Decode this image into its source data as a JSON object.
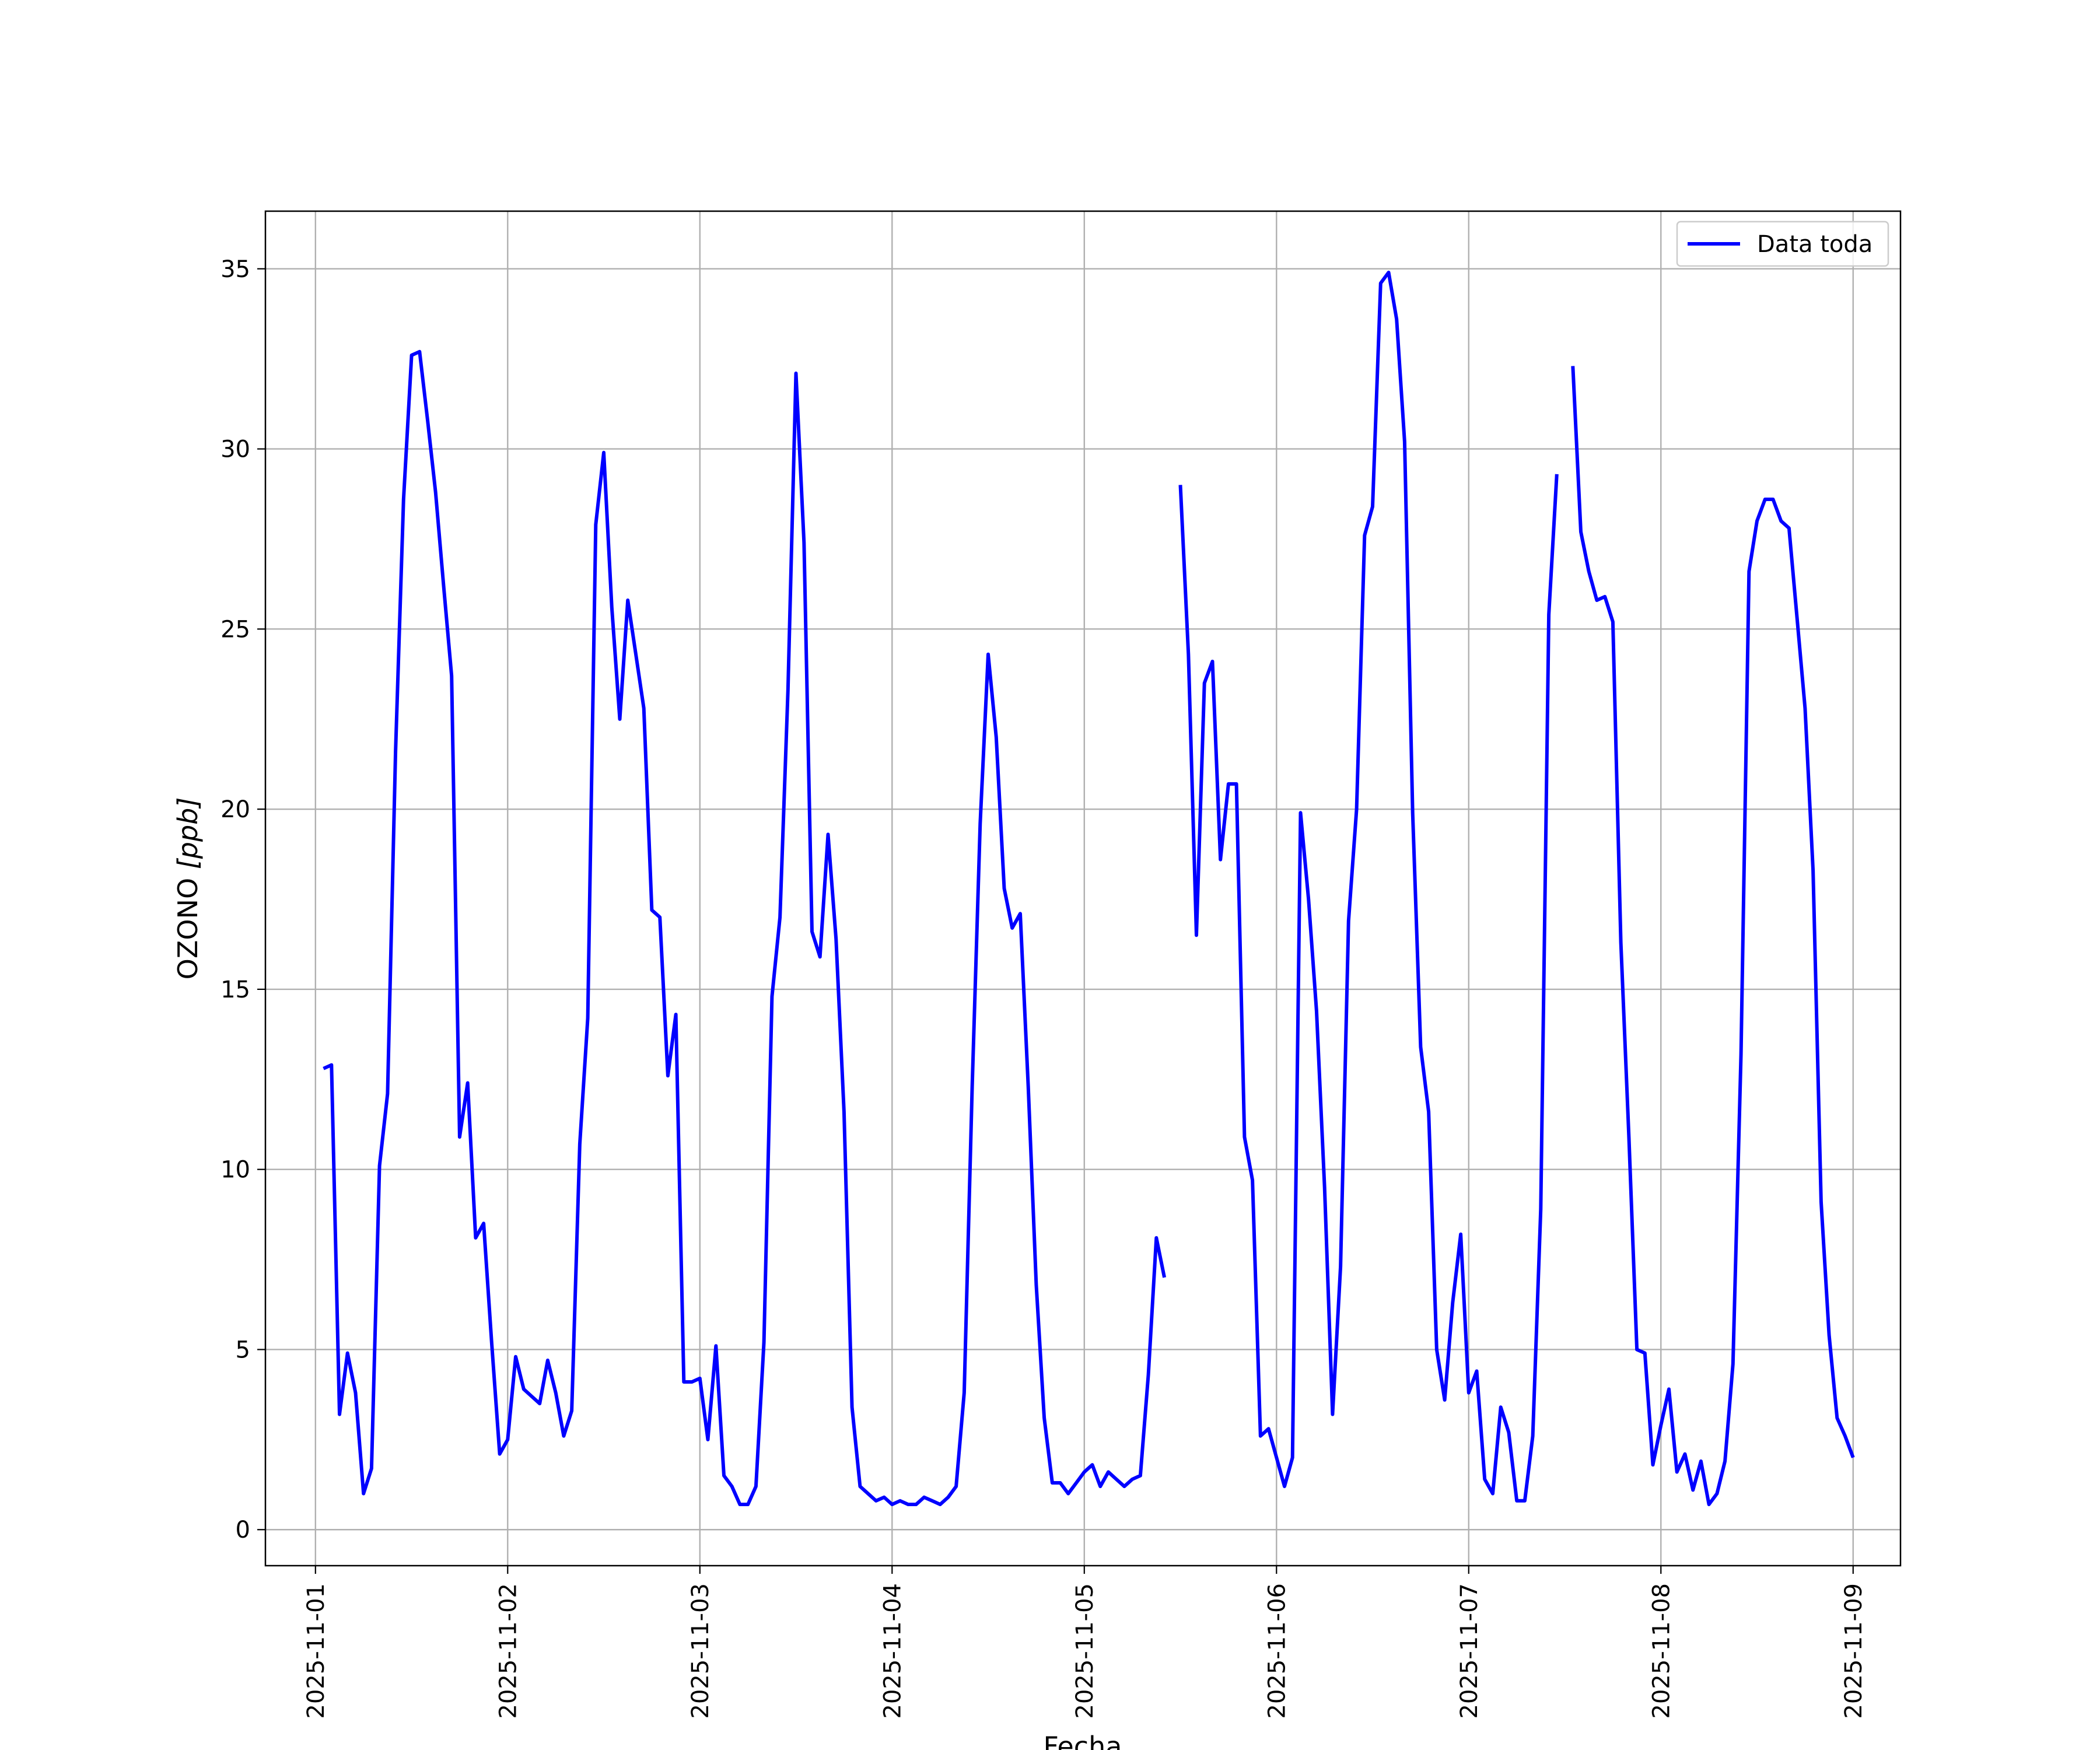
{
  "chart_data": {
    "type": "line",
    "title": "",
    "xlabel": "Fecha",
    "ylabel_text": "OZONO ",
    "ylabel_unit": "[ppb]",
    "x_axis": {
      "type": "date",
      "range": [
        "2025-10-31 17:45",
        "2025-11-09 05:55"
      ],
      "ticks": [
        "2025-11-01",
        "2025-11-02",
        "2025-11-03",
        "2025-11-04",
        "2025-11-05",
        "2025-11-06",
        "2025-11-07",
        "2025-11-08",
        "2025-11-09"
      ]
    },
    "y_axis": {
      "range": [
        -1.0,
        36.6
      ],
      "ticks": [
        0,
        5,
        10,
        15,
        20,
        25,
        30,
        35
      ]
    },
    "grid": true,
    "legend_position": "top-right",
    "series": [
      {
        "name": "Data toda",
        "color": "#0000ff",
        "line_style": "solid",
        "points": [
          [
            "2025-11-01 01:00",
            12.8
          ],
          [
            "2025-11-01 02:00",
            12.9
          ],
          [
            "2025-11-01 03:00",
            3.2
          ],
          [
            "2025-11-01 04:00",
            4.9
          ],
          [
            "2025-11-01 05:00",
            3.8
          ],
          [
            "2025-11-01 06:00",
            1.0
          ],
          [
            "2025-11-01 07:00",
            1.7
          ],
          [
            "2025-11-01 08:00",
            10.1
          ],
          [
            "2025-11-01 09:00",
            12.1
          ],
          [
            "2025-11-01 10:00",
            21.6
          ],
          [
            "2025-11-01 11:00",
            28.6
          ],
          [
            "2025-11-01 12:00",
            32.6
          ],
          [
            "2025-11-01 13:00",
            32.7
          ],
          [
            "2025-11-01 14:00",
            30.8
          ],
          [
            "2025-11-01 15:00",
            28.8
          ],
          [
            "2025-11-01 16:00",
            26.2
          ],
          [
            "2025-11-01 17:00",
            23.7
          ],
          [
            "2025-11-01 18:00",
            10.9
          ],
          [
            "2025-11-01 19:00",
            12.4
          ],
          [
            "2025-11-01 20:00",
            8.1
          ],
          [
            "2025-11-01 21:00",
            8.5
          ],
          [
            "2025-11-01 22:00",
            5.2
          ],
          [
            "2025-11-01 23:00",
            2.1
          ],
          [
            "2025-11-02 00:00",
            2.5
          ],
          [
            "2025-11-02 01:00",
            4.8
          ],
          [
            "2025-11-02 02:00",
            3.9
          ],
          [
            "2025-11-02 03:00",
            3.7
          ],
          [
            "2025-11-02 04:00",
            3.5
          ],
          [
            "2025-11-02 05:00",
            4.7
          ],
          [
            "2025-11-02 06:00",
            3.8
          ],
          [
            "2025-11-02 07:00",
            2.6
          ],
          [
            "2025-11-02 08:00",
            3.3
          ],
          [
            "2025-11-02 09:00",
            10.7
          ],
          [
            "2025-11-02 10:00",
            14.2
          ],
          [
            "2025-11-02 11:00",
            27.9
          ],
          [
            "2025-11-02 12:00",
            29.9
          ],
          [
            "2025-11-02 13:00",
            25.6
          ],
          [
            "2025-11-02 14:00",
            22.5
          ],
          [
            "2025-11-02 15:00",
            25.8
          ],
          [
            "2025-11-02 16:00",
            24.3
          ],
          [
            "2025-11-02 17:00",
            22.8
          ],
          [
            "2025-11-02 18:00",
            17.2
          ],
          [
            "2025-11-02 19:00",
            17.0
          ],
          [
            "2025-11-02 20:00",
            12.6
          ],
          [
            "2025-11-02 21:00",
            14.3
          ],
          [
            "2025-11-02 22:00",
            4.1
          ],
          [
            "2025-11-02 23:00",
            4.1
          ],
          [
            "2025-11-03 00:00",
            4.2
          ],
          [
            "2025-11-03 01:00",
            2.5
          ],
          [
            "2025-11-03 02:00",
            5.1
          ],
          [
            "2025-11-03 03:00",
            1.5
          ],
          [
            "2025-11-03 04:00",
            1.2
          ],
          [
            "2025-11-03 05:00",
            0.7
          ],
          [
            "2025-11-03 06:00",
            0.7
          ],
          [
            "2025-11-03 07:00",
            1.2
          ],
          [
            "2025-11-03 08:00",
            5.2
          ],
          [
            "2025-11-03 09:00",
            14.8
          ],
          [
            "2025-11-03 10:00",
            17.0
          ],
          [
            "2025-11-03 11:00",
            23.3
          ],
          [
            "2025-11-03 12:00",
            32.1
          ],
          [
            "2025-11-03 13:00",
            27.4
          ],
          [
            "2025-11-03 14:00",
            16.6
          ],
          [
            "2025-11-03 15:00",
            15.9
          ],
          [
            "2025-11-03 16:00",
            19.3
          ],
          [
            "2025-11-03 17:00",
            16.4
          ],
          [
            "2025-11-03 18:00",
            11.6
          ],
          [
            "2025-11-03 19:00",
            3.4
          ],
          [
            "2025-11-03 20:00",
            1.2
          ],
          [
            "2025-11-03 21:00",
            1.0
          ],
          [
            "2025-11-03 22:00",
            0.8
          ],
          [
            "2025-11-03 23:00",
            0.9
          ],
          [
            "2025-11-04 00:00",
            0.7
          ],
          [
            "2025-11-04 01:00",
            0.8
          ],
          [
            "2025-11-04 02:00",
            0.7
          ],
          [
            "2025-11-04 03:00",
            0.7
          ],
          [
            "2025-11-04 04:00",
            0.9
          ],
          [
            "2025-11-04 05:00",
            0.8
          ],
          [
            "2025-11-04 06:00",
            0.7
          ],
          [
            "2025-11-04 07:00",
            0.9
          ],
          [
            "2025-11-04 08:00",
            1.2
          ],
          [
            "2025-11-04 09:00",
            3.8
          ],
          [
            "2025-11-04 10:00",
            12.3
          ],
          [
            "2025-11-04 11:00",
            19.6
          ],
          [
            "2025-11-04 12:00",
            24.3
          ],
          [
            "2025-11-04 13:00",
            22.0
          ],
          [
            "2025-11-04 14:00",
            17.8
          ],
          [
            "2025-11-04 15:00",
            16.7
          ],
          [
            "2025-11-04 16:00",
            17.1
          ],
          [
            "2025-11-04 17:00",
            12.3
          ],
          [
            "2025-11-04 18:00",
            6.8
          ],
          [
            "2025-11-04 19:00",
            3.1
          ],
          [
            "2025-11-04 20:00",
            1.3
          ],
          [
            "2025-11-04 21:00",
            1.3
          ],
          [
            "2025-11-04 22:00",
            1.0
          ],
          [
            "2025-11-04 23:00",
            1.3
          ],
          [
            "2025-11-05 00:00",
            1.6
          ],
          [
            "2025-11-05 01:00",
            1.8
          ],
          [
            "2025-11-05 02:00",
            1.2
          ],
          [
            "2025-11-05 03:00",
            1.6
          ],
          [
            "2025-11-05 04:00",
            1.4
          ],
          [
            "2025-11-05 05:00",
            1.2
          ],
          [
            "2025-11-05 06:00",
            1.4
          ],
          [
            "2025-11-05 07:00",
            1.5
          ],
          [
            "2025-11-05 08:00",
            4.3
          ],
          [
            "2025-11-05 09:00",
            8.1
          ],
          [
            "2025-11-05 10:00",
            7.0
          ],
          null,
          [
            "2025-11-05 12:00",
            29.0
          ],
          [
            "2025-11-05 13:00",
            24.3
          ],
          [
            "2025-11-05 14:00",
            16.5
          ],
          [
            "2025-11-05 15:00",
            23.5
          ],
          [
            "2025-11-05 16:00",
            24.1
          ],
          [
            "2025-11-05 17:00",
            18.6
          ],
          [
            "2025-11-05 18:00",
            20.7
          ],
          [
            "2025-11-05 19:00",
            20.7
          ],
          [
            "2025-11-05 20:00",
            10.9
          ],
          [
            "2025-11-05 21:00",
            9.7
          ],
          [
            "2025-11-05 22:00",
            2.6
          ],
          [
            "2025-11-05 23:00",
            2.8
          ],
          [
            "2025-11-06 00:00",
            2.0
          ],
          [
            "2025-11-06 01:00",
            1.2
          ],
          [
            "2025-11-06 02:00",
            2.0
          ],
          [
            "2025-11-06 03:00",
            19.9
          ],
          [
            "2025-11-06 04:00",
            17.5
          ],
          [
            "2025-11-06 05:00",
            14.4
          ],
          [
            "2025-11-06 06:00",
            9.5
          ],
          [
            "2025-11-06 07:00",
            3.2
          ],
          [
            "2025-11-06 08:00",
            7.3
          ],
          [
            "2025-11-06 09:00",
            16.9
          ],
          [
            "2025-11-06 10:00",
            20.0
          ],
          [
            "2025-11-06 11:00",
            27.6
          ],
          [
            "2025-11-06 12:00",
            28.4
          ],
          [
            "2025-11-06 13:00",
            34.6
          ],
          [
            "2025-11-06 14:00",
            34.9
          ],
          [
            "2025-11-06 15:00",
            33.6
          ],
          [
            "2025-11-06 16:00",
            30.2
          ],
          [
            "2025-11-06 17:00",
            19.9
          ],
          [
            "2025-11-06 18:00",
            13.4
          ],
          [
            "2025-11-06 19:00",
            11.6
          ],
          [
            "2025-11-06 20:00",
            5.0
          ],
          [
            "2025-11-06 21:00",
            3.6
          ],
          [
            "2025-11-06 22:00",
            6.3
          ],
          [
            "2025-11-06 23:00",
            8.2
          ],
          [
            "2025-11-07 00:00",
            3.8
          ],
          [
            "2025-11-07 01:00",
            4.4
          ],
          [
            "2025-11-07 02:00",
            1.4
          ],
          [
            "2025-11-07 03:00",
            1.0
          ],
          [
            "2025-11-07 04:00",
            3.4
          ],
          [
            "2025-11-07 05:00",
            2.7
          ],
          [
            "2025-11-07 06:00",
            0.8
          ],
          [
            "2025-11-07 07:00",
            0.8
          ],
          [
            "2025-11-07 08:00",
            2.6
          ],
          [
            "2025-11-07 09:00",
            8.9
          ],
          [
            "2025-11-07 10:00",
            25.4
          ],
          [
            "2025-11-07 11:00",
            29.3
          ],
          null,
          [
            "2025-11-07 13:00",
            32.3
          ],
          [
            "2025-11-07 14:00",
            27.7
          ],
          [
            "2025-11-07 15:00",
            26.6
          ],
          [
            "2025-11-07 16:00",
            25.8
          ],
          [
            "2025-11-07 17:00",
            25.9
          ],
          [
            "2025-11-07 18:00",
            25.2
          ],
          [
            "2025-11-07 19:00",
            16.3
          ],
          [
            "2025-11-07 20:00",
            10.9
          ],
          [
            "2025-11-07 21:00",
            5.0
          ],
          [
            "2025-11-07 22:00",
            4.9
          ],
          [
            "2025-11-07 23:00",
            1.8
          ],
          [
            "2025-11-08 00:00",
            2.9
          ],
          [
            "2025-11-08 01:00",
            3.9
          ],
          [
            "2025-11-08 02:00",
            1.6
          ],
          [
            "2025-11-08 03:00",
            2.1
          ],
          [
            "2025-11-08 04:00",
            1.1
          ],
          [
            "2025-11-08 05:00",
            1.9
          ],
          [
            "2025-11-08 06:00",
            0.7
          ],
          [
            "2025-11-08 07:00",
            1.0
          ],
          [
            "2025-11-08 08:00",
            1.9
          ],
          [
            "2025-11-08 09:00",
            4.6
          ],
          [
            "2025-11-08 10:00",
            13.2
          ],
          [
            "2025-11-08 11:00",
            26.6
          ],
          [
            "2025-11-08 12:00",
            28.0
          ],
          [
            "2025-11-08 13:00",
            28.6
          ],
          [
            "2025-11-08 14:00",
            28.6
          ],
          [
            "2025-11-08 15:00",
            28.0
          ],
          [
            "2025-11-08 16:00",
            27.8
          ],
          [
            "2025-11-08 17:00",
            25.3
          ],
          [
            "2025-11-08 18:00",
            22.8
          ],
          [
            "2025-11-08 19:00",
            18.3
          ],
          [
            "2025-11-08 20:00",
            9.1
          ],
          [
            "2025-11-08 21:00",
            5.4
          ],
          [
            "2025-11-08 22:00",
            3.1
          ],
          [
            "2025-11-08 23:00",
            2.6
          ],
          [
            "2025-11-09 00:00",
            2.0
          ]
        ]
      }
    ]
  }
}
